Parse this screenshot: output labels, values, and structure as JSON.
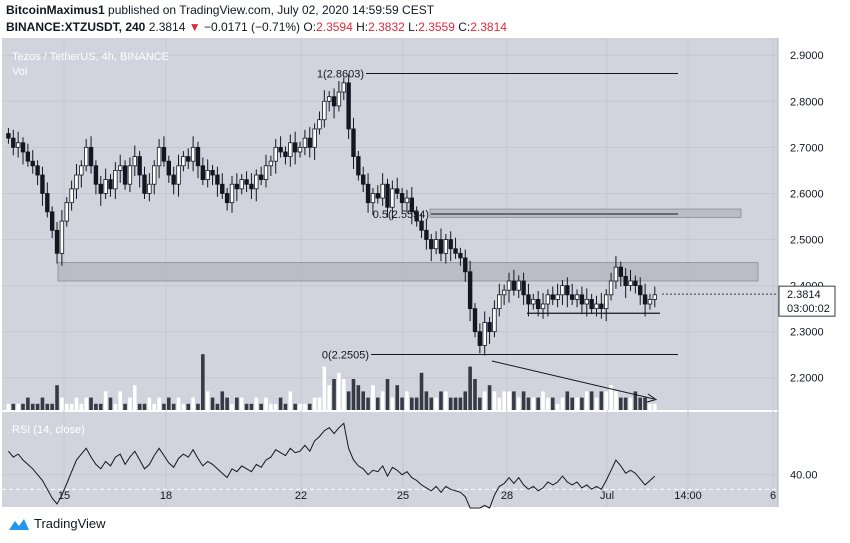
{
  "header": {
    "author": "BitcoinMaximus1",
    "published_text": "published on TradingView.com, July 02, 2020 14:59:59 CEST",
    "symbol": "BINANCE:XTZUSDT, 240",
    "last_price": "2.3814",
    "change_arrow": "▼",
    "change": "−0.0171 (−0.71%)",
    "open_label": "O:",
    "open": "2.3594",
    "high_label": "H:",
    "high": "2.3832",
    "low_label": "L:",
    "low": "2.3559",
    "close_label": "C:",
    "close": "2.3814"
  },
  "chart_data": {
    "type": "candlestick",
    "title": "Tezos / TetherUS, 4h, BINANCE",
    "volume_label": "Vol",
    "ylim": [
      2.13,
      2.92
    ],
    "y_ticks": [
      2.2,
      2.3,
      2.4,
      2.5,
      2.6,
      2.7,
      2.8,
      2.9
    ],
    "y_tick_labels": [
      "2.2000",
      "2.3000",
      "2.4000",
      "2.5000",
      "2.6000",
      "2.7000",
      "2.8000",
      "2.9000"
    ],
    "x_tick_labels": [
      "15",
      "18",
      "22",
      "25",
      "28",
      "Jul",
      "14:00",
      "6"
    ],
    "last_price_label": "2.3814",
    "countdown": "03:00:02",
    "close_series": [
      2.72,
      2.7,
      2.71,
      2.69,
      2.67,
      2.66,
      2.64,
      2.6,
      2.56,
      2.52,
      2.47,
      2.54,
      2.58,
      2.61,
      2.64,
      2.66,
      2.7,
      2.66,
      2.62,
      2.6,
      2.63,
      2.61,
      2.65,
      2.66,
      2.62,
      2.66,
      2.68,
      2.64,
      2.6,
      2.62,
      2.66,
      2.7,
      2.67,
      2.64,
      2.62,
      2.66,
      2.68,
      2.67,
      2.7,
      2.66,
      2.63,
      2.65,
      2.64,
      2.62,
      2.6,
      2.58,
      2.62,
      2.61,
      2.63,
      2.62,
      2.61,
      2.64,
      2.63,
      2.66,
      2.67,
      2.7,
      2.69,
      2.68,
      2.71,
      2.69,
      2.7,
      2.72,
      2.7,
      2.74,
      2.76,
      2.8,
      2.81,
      2.79,
      2.82,
      2.84,
      2.74,
      2.68,
      2.64,
      2.62,
      2.58,
      2.6,
      2.59,
      2.62,
      2.57,
      2.61,
      2.6,
      2.58,
      2.59,
      2.56,
      2.54,
      2.52,
      2.5,
      2.48,
      2.5,
      2.47,
      2.5,
      2.48,
      2.47,
      2.46,
      2.43,
      2.35,
      2.3,
      2.27,
      2.32,
      2.3,
      2.35,
      2.38,
      2.39,
      2.41,
      2.39,
      2.41,
      2.38,
      2.36,
      2.37,
      2.35,
      2.36,
      2.38,
      2.37,
      2.38,
      2.4,
      2.38,
      2.37,
      2.38,
      2.36,
      2.37,
      2.35,
      2.36,
      2.35,
      2.38,
      2.41,
      2.44,
      2.42,
      2.4,
      2.41,
      2.4,
      2.38,
      2.36,
      2.37,
      2.38
    ],
    "levels": [
      {
        "label": "1(2.8603)",
        "value": 2.8603
      },
      {
        "label": "0.5(2.5554)",
        "value": 2.5554
      },
      {
        "label": "0(2.2505)",
        "value": 2.2505
      }
    ],
    "zones": [
      {
        "from": 2.41,
        "to": 2.45
      },
      {
        "from": 2.548,
        "to": 2.566
      }
    ],
    "support_line": 2.34,
    "rsi": {
      "label": "RSI (14, close)",
      "tick_label": "40.00",
      "tick_value": 40,
      "range": [
        20,
        80
      ],
      "values": [
        56,
        52,
        54,
        50,
        47,
        44,
        40,
        36,
        30,
        24,
        20,
        26,
        34,
        42,
        50,
        54,
        58,
        52,
        47,
        44,
        49,
        46,
        52,
        54,
        47,
        52,
        56,
        50,
        44,
        47,
        53,
        58,
        53,
        48,
        45,
        51,
        54,
        52,
        57,
        51,
        46,
        49,
        47,
        44,
        41,
        38,
        44,
        42,
        46,
        44,
        42,
        47,
        45,
        50,
        52,
        57,
        55,
        53,
        58,
        55,
        56,
        60,
        56,
        63,
        66,
        70,
        72,
        68,
        72,
        75,
        58,
        50,
        46,
        44,
        40,
        43,
        42,
        46,
        39,
        45,
        43,
        40,
        42,
        38,
        36,
        33,
        31,
        29,
        32,
        28,
        32,
        30,
        29,
        28,
        25,
        17,
        12,
        10,
        19,
        16,
        26,
        32,
        34,
        38,
        34,
        38,
        33,
        30,
        32,
        29,
        31,
        35,
        33,
        35,
        39,
        35,
        33,
        35,
        31,
        33,
        30,
        32,
        30,
        36,
        43,
        50,
        46,
        41,
        43,
        41,
        37,
        33,
        36,
        39
      ]
    },
    "volume_series": [
      1,
      1,
      1,
      1,
      2,
      1,
      1,
      2,
      1,
      1,
      4,
      2,
      1,
      1,
      2,
      1,
      2,
      2,
      1,
      1,
      3,
      2,
      1,
      3,
      1,
      2,
      4,
      1,
      1,
      2,
      1,
      2,
      1,
      2,
      1,
      2,
      1,
      1,
      2,
      1,
      9,
      3,
      2,
      1,
      3,
      2,
      1,
      2,
      2,
      1,
      1,
      2,
      1,
      2,
      1,
      1,
      2,
      1,
      3,
      1,
      1,
      1,
      1,
      2,
      2,
      7,
      4,
      5,
      6,
      5,
      3,
      5,
      4,
      3,
      2,
      4,
      2,
      3,
      5,
      2,
      4,
      2,
      3,
      2,
      2,
      6,
      3,
      2,
      2,
      3,
      3,
      2,
      2,
      2,
      3,
      7,
      5,
      2,
      3,
      4,
      3,
      2,
      3,
      3,
      3,
      2,
      3,
      2,
      2,
      2,
      3,
      2,
      2,
      1,
      2,
      3,
      2,
      2,
      2,
      3,
      3,
      2,
      3,
      3,
      4,
      3,
      2,
      2,
      2,
      3,
      2,
      2,
      1,
      1
    ]
  },
  "footer": {
    "brand": "TradingView"
  }
}
